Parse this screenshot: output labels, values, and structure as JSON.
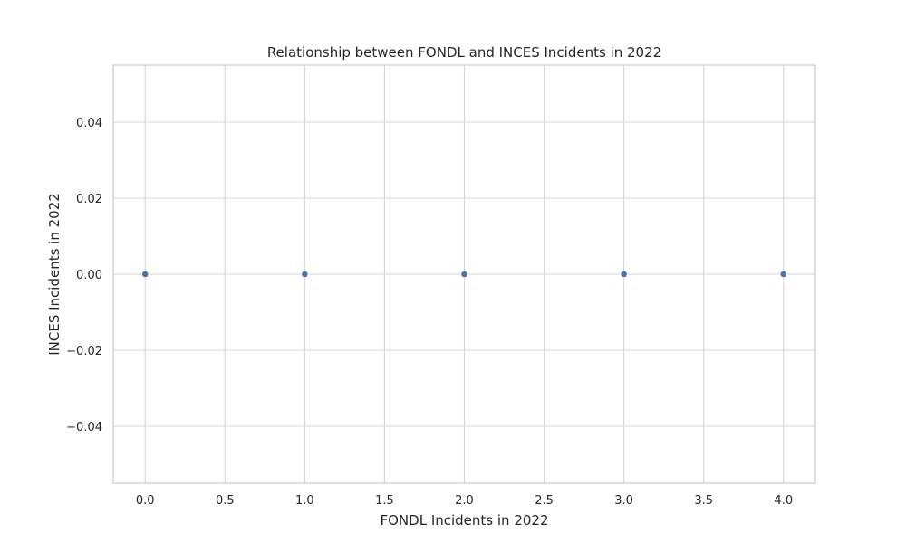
{
  "chart_data": {
    "type": "scatter",
    "title": "Relationship between FONDL and INCES Incidents in 2022",
    "xlabel": "FONDL Incidents in 2022",
    "ylabel": "INCES Incidents in 2022",
    "x": [
      0,
      1,
      2,
      3,
      4
    ],
    "y": [
      0,
      0,
      0,
      0,
      0
    ],
    "xlim": [
      -0.2,
      4.2
    ],
    "ylim": [
      -0.055,
      0.055
    ],
    "xticks": [
      0.0,
      0.5,
      1.0,
      1.5,
      2.0,
      2.5,
      3.0,
      3.5,
      4.0
    ],
    "xtick_labels": [
      "0.0",
      "0.5",
      "1.0",
      "1.5",
      "2.0",
      "2.5",
      "3.0",
      "3.5",
      "4.0"
    ],
    "yticks": [
      -0.04,
      -0.02,
      0.0,
      0.02,
      0.04
    ],
    "ytick_labels": [
      "−0.04",
      "−0.02",
      "0.00",
      "0.02",
      "0.04"
    ],
    "grid": true,
    "legend": "none",
    "colors": {
      "marker": "#4c72b0",
      "grid": "#d5d5d5",
      "frame": "#cccccc",
      "text": "#262626"
    }
  }
}
